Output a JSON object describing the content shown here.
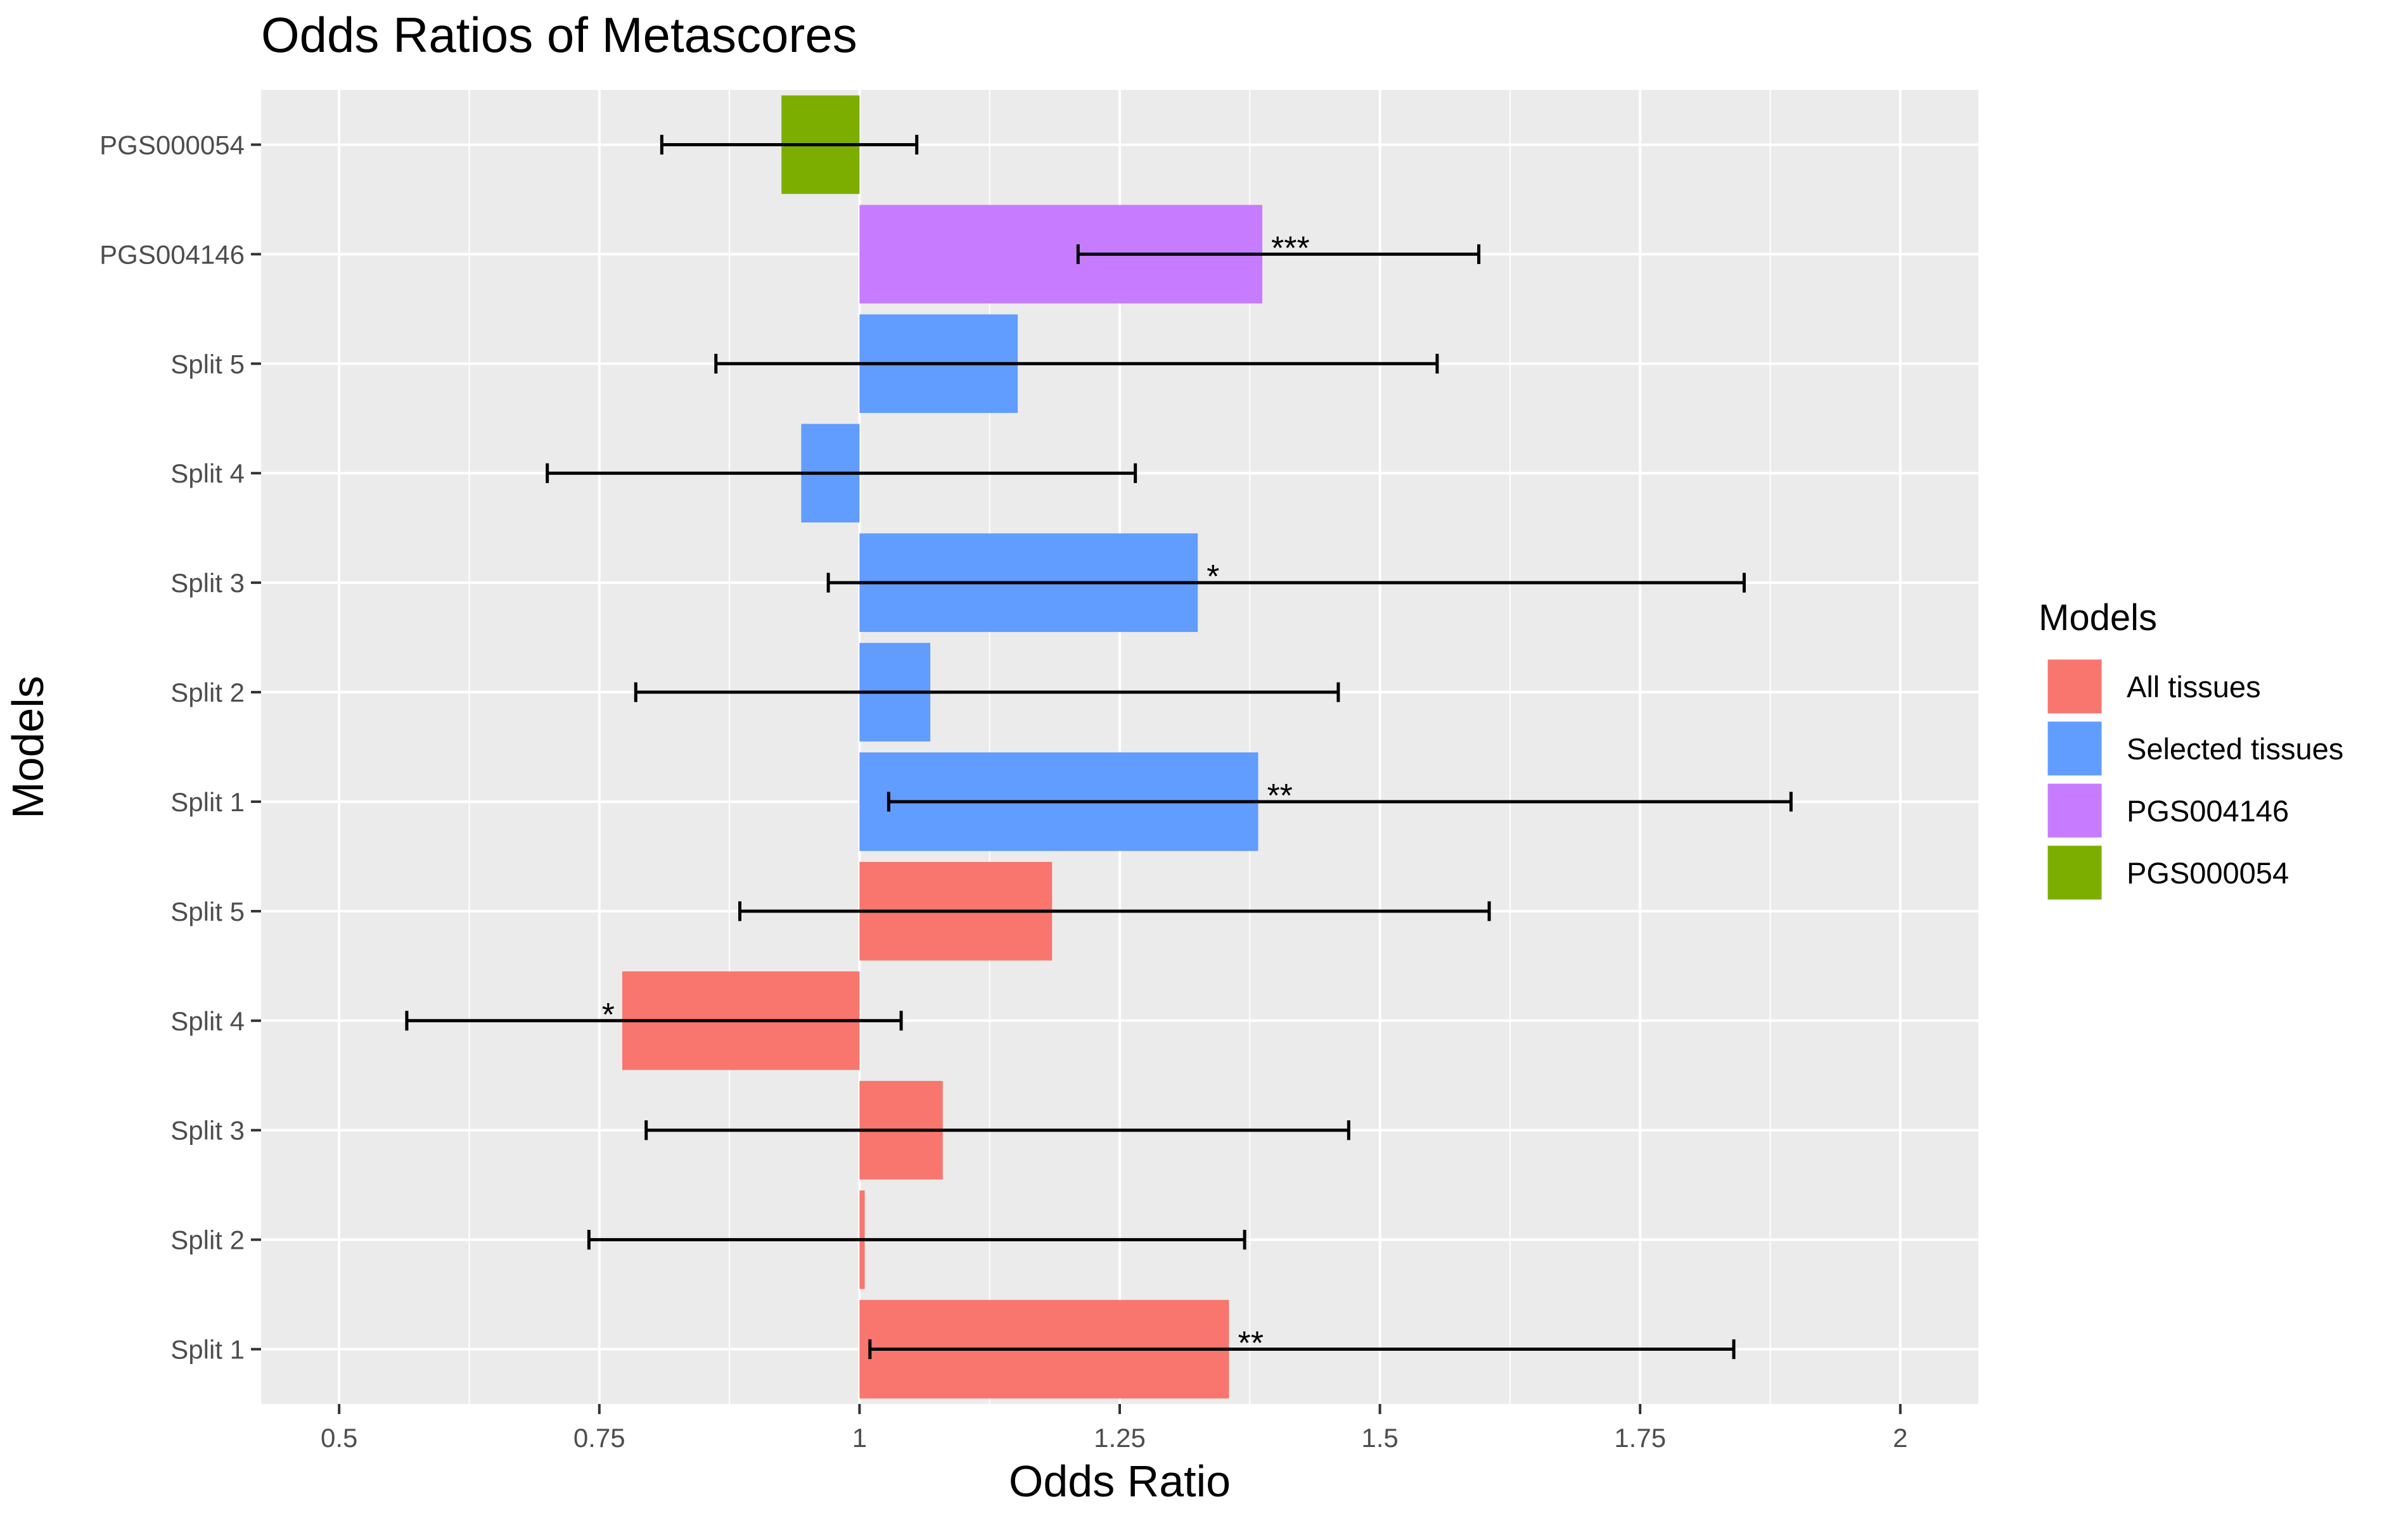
{
  "chart_data": {
    "type": "bar",
    "orientation": "horizontal",
    "title": "Odds Ratios of Metascores",
    "xlabel": "Odds Ratio",
    "ylabel": "Models",
    "baseline": 1,
    "xlim": [
      0.425,
      2.075
    ],
    "xticks": [
      0.5,
      0.75,
      1,
      1.25,
      1.5,
      1.75,
      2
    ],
    "xtick_labels": [
      "0.5",
      "0.75",
      "1",
      "1.25",
      "1.5",
      "1.75",
      "2"
    ],
    "grid": true,
    "legend": {
      "title": "Models",
      "position": "right",
      "entries": [
        {
          "name": "All tissues",
          "color": "#F8766D"
        },
        {
          "name": "Selected tissues",
          "color": "#619CFF"
        },
        {
          "name": "PGS004146",
          "color": "#C77CFF"
        },
        {
          "name": "PGS000054",
          "color": "#7CAE00"
        }
      ]
    },
    "rows": [
      {
        "label": "Split 1",
        "series": "All tissues",
        "value": 1.355,
        "ci_low": 1.01,
        "ci_high": 1.84,
        "sig": "**"
      },
      {
        "label": "Split 2",
        "series": "All tissues",
        "value": 1.005,
        "ci_low": 0.74,
        "ci_high": 1.37,
        "sig": ""
      },
      {
        "label": "Split 3",
        "series": "All tissues",
        "value": 1.08,
        "ci_low": 0.795,
        "ci_high": 1.47,
        "sig": ""
      },
      {
        "label": "Split 4",
        "series": "All tissues",
        "value": 0.772,
        "ci_low": 0.565,
        "ci_high": 1.04,
        "sig": "*"
      },
      {
        "label": "Split 5",
        "series": "All tissues",
        "value": 1.185,
        "ci_low": 0.885,
        "ci_high": 1.605,
        "sig": ""
      },
      {
        "label": "Split 1",
        "series": "Selected tissues",
        "value": 1.383,
        "ci_low": 1.028,
        "ci_high": 1.895,
        "sig": "**"
      },
      {
        "label": "Split 2",
        "series": "Selected tissues",
        "value": 1.068,
        "ci_low": 0.785,
        "ci_high": 1.46,
        "sig": ""
      },
      {
        "label": "Split 3",
        "series": "Selected tissues",
        "value": 1.325,
        "ci_low": 0.97,
        "ci_high": 1.85,
        "sig": "*"
      },
      {
        "label": "Split 4",
        "series": "Selected tissues",
        "value": 0.944,
        "ci_low": 0.7,
        "ci_high": 1.265,
        "sig": ""
      },
      {
        "label": "Split 5",
        "series": "Selected tissues",
        "value": 1.152,
        "ci_low": 0.862,
        "ci_high": 1.555,
        "sig": ""
      },
      {
        "label": "PGS004146",
        "series": "PGS004146",
        "value": 1.387,
        "ci_low": 1.21,
        "ci_high": 1.595,
        "sig": "***"
      },
      {
        "label": "PGS000054",
        "series": "PGS000054",
        "value": 0.925,
        "ci_low": 0.81,
        "ci_high": 1.055,
        "sig": ""
      }
    ]
  }
}
